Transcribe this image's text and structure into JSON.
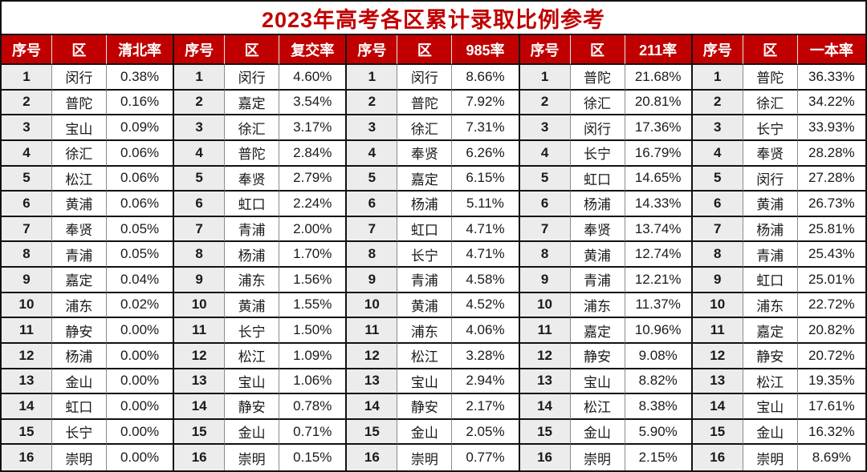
{
  "title": "2023年高考各区累计录取比例参考",
  "colors": {
    "header_bg": "#C00000",
    "header_text": "#FFFFFF",
    "title_text": "#C00000",
    "index_cell_bg": "#ECECEC",
    "data_cell_bg": "#FFFFFF",
    "line_dark": "#111111",
    "line_light": "#8C8C8C",
    "header_divider": "#E6E6E6",
    "text": "#1A1A1A"
  },
  "chart_data": {
    "type": "table",
    "title": "2023年高考各区累计录取比例参考",
    "row_count": 16,
    "column_groups": [
      {
        "headers": [
          "序号",
          "区",
          "清北率"
        ],
        "rows": [
          [
            "1",
            "闵行",
            "0.38%"
          ],
          [
            "2",
            "普陀",
            "0.16%"
          ],
          [
            "3",
            "宝山",
            "0.09%"
          ],
          [
            "4",
            "徐汇",
            "0.06%"
          ],
          [
            "5",
            "松江",
            "0.06%"
          ],
          [
            "6",
            "黄浦",
            "0.06%"
          ],
          [
            "7",
            "奉贤",
            "0.05%"
          ],
          [
            "8",
            "青浦",
            "0.05%"
          ],
          [
            "9",
            "嘉定",
            "0.04%"
          ],
          [
            "10",
            "浦东",
            "0.02%"
          ],
          [
            "11",
            "静安",
            "0.00%"
          ],
          [
            "12",
            "杨浦",
            "0.00%"
          ],
          [
            "13",
            "金山",
            "0.00%"
          ],
          [
            "14",
            "虹口",
            "0.00%"
          ],
          [
            "15",
            "长宁",
            "0.00%"
          ],
          [
            "16",
            "崇明",
            "0.00%"
          ]
        ]
      },
      {
        "headers": [
          "序号",
          "区",
          "复交率"
        ],
        "rows": [
          [
            "1",
            "闵行",
            "4.60%"
          ],
          [
            "2",
            "嘉定",
            "3.54%"
          ],
          [
            "3",
            "徐汇",
            "3.17%"
          ],
          [
            "4",
            "普陀",
            "2.84%"
          ],
          [
            "5",
            "奉贤",
            "2.79%"
          ],
          [
            "6",
            "虹口",
            "2.24%"
          ],
          [
            "7",
            "青浦",
            "2.00%"
          ],
          [
            "8",
            "杨浦",
            "1.70%"
          ],
          [
            "9",
            "浦东",
            "1.56%"
          ],
          [
            "10",
            "黄浦",
            "1.55%"
          ],
          [
            "11",
            "长宁",
            "1.50%"
          ],
          [
            "12",
            "松江",
            "1.09%"
          ],
          [
            "13",
            "宝山",
            "1.06%"
          ],
          [
            "14",
            "静安",
            "0.78%"
          ],
          [
            "15",
            "金山",
            "0.71%"
          ],
          [
            "16",
            "崇明",
            "0.15%"
          ]
        ]
      },
      {
        "headers": [
          "序号",
          "区",
          "985率"
        ],
        "rows": [
          [
            "1",
            "闵行",
            "8.66%"
          ],
          [
            "2",
            "普陀",
            "7.92%"
          ],
          [
            "3",
            "徐汇",
            "7.31%"
          ],
          [
            "4",
            "奉贤",
            "6.26%"
          ],
          [
            "5",
            "嘉定",
            "6.15%"
          ],
          [
            "6",
            "杨浦",
            "5.11%"
          ],
          [
            "7",
            "虹口",
            "4.71%"
          ],
          [
            "8",
            "长宁",
            "4.71%"
          ],
          [
            "9",
            "青浦",
            "4.58%"
          ],
          [
            "10",
            "黄浦",
            "4.52%"
          ],
          [
            "11",
            "浦东",
            "4.06%"
          ],
          [
            "12",
            "松江",
            "3.28%"
          ],
          [
            "13",
            "宝山",
            "2.94%"
          ],
          [
            "14",
            "静安",
            "2.17%"
          ],
          [
            "15",
            "金山",
            "2.05%"
          ],
          [
            "16",
            "崇明",
            "0.77%"
          ]
        ]
      },
      {
        "headers": [
          "序号",
          "区",
          "211率"
        ],
        "rows": [
          [
            "1",
            "普陀",
            "21.68%"
          ],
          [
            "2",
            "徐汇",
            "20.81%"
          ],
          [
            "3",
            "闵行",
            "17.36%"
          ],
          [
            "4",
            "长宁",
            "16.79%"
          ],
          [
            "5",
            "虹口",
            "14.65%"
          ],
          [
            "6",
            "杨浦",
            "14.33%"
          ],
          [
            "7",
            "奉贤",
            "13.74%"
          ],
          [
            "8",
            "黄浦",
            "12.74%"
          ],
          [
            "9",
            "青浦",
            "12.21%"
          ],
          [
            "10",
            "浦东",
            "11.37%"
          ],
          [
            "11",
            "嘉定",
            "10.96%"
          ],
          [
            "12",
            "静安",
            "9.08%"
          ],
          [
            "13",
            "宝山",
            "8.82%"
          ],
          [
            "14",
            "松江",
            "8.38%"
          ],
          [
            "15",
            "金山",
            "5.90%"
          ],
          [
            "16",
            "崇明",
            "2.15%"
          ]
        ]
      },
      {
        "headers": [
          "序号",
          "区",
          "一本率"
        ],
        "rows": [
          [
            "1",
            "普陀",
            "36.33%"
          ],
          [
            "2",
            "徐汇",
            "34.22%"
          ],
          [
            "3",
            "长宁",
            "33.93%"
          ],
          [
            "4",
            "奉贤",
            "28.28%"
          ],
          [
            "5",
            "闵行",
            "27.28%"
          ],
          [
            "6",
            "黄浦",
            "26.73%"
          ],
          [
            "7",
            "杨浦",
            "25.81%"
          ],
          [
            "8",
            "青浦",
            "25.43%"
          ],
          [
            "9",
            "虹口",
            "25.01%"
          ],
          [
            "10",
            "浦东",
            "22.72%"
          ],
          [
            "11",
            "嘉定",
            "20.82%"
          ],
          [
            "12",
            "静安",
            "20.72%"
          ],
          [
            "13",
            "松江",
            "19.35%"
          ],
          [
            "14",
            "宝山",
            "17.61%"
          ],
          [
            "15",
            "金山",
            "16.32%"
          ],
          [
            "16",
            "崇明",
            "8.69%"
          ]
        ]
      }
    ]
  }
}
